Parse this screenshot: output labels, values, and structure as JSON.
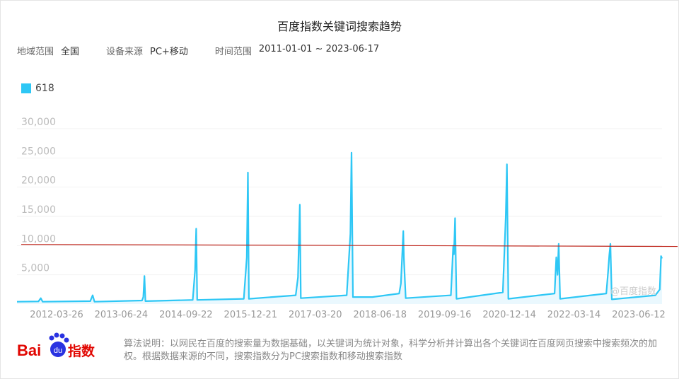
{
  "title": "百度指数关键词搜索趋势",
  "filters": {
    "region_label": "地域范围",
    "region": "全国",
    "device_label": "设备来源",
    "device": "PC+移动",
    "time_label": "时间范围",
    "time": "2011-01-01 ~ 2023-06-17"
  },
  "watermark": "@百度指数",
  "footer": "算法说明：以网民在百度的搜索量为数据基础，以关键词为统计对象，科学分析并计算出各个关键词在百度网页搜索中搜索频次的加权。根据数据来源的不同，搜索指数分为PC搜索指数和移动搜索指数",
  "logo_text": "Baidu指数",
  "chart_data": {
    "type": "line",
    "legend_position": "top-left",
    "grid": true,
    "xlim": [
      "2011-01-01",
      "2023-06-17"
    ],
    "ylim": [
      0,
      30000
    ],
    "yticks": [
      "5,000",
      "10,000",
      "15,000",
      "20,000",
      "25,000",
      "30,000"
    ],
    "ytick_values": [
      5000,
      10000,
      15000,
      20000,
      25000,
      30000
    ],
    "xticks": [
      "2012-03-26",
      "2013-06-24",
      "2014-09-22",
      "2015-12-21",
      "2017-03-20",
      "2018-06-18",
      "2019-09-16",
      "2020-12-14",
      "2022-03-14",
      "2023-06-12"
    ],
    "series": [
      {
        "name": "618",
        "color": "#2ec7f5",
        "points": [
          [
            "2011-01-01",
            400
          ],
          [
            "2011-06-01",
            450
          ],
          [
            "2011-06-18",
            1000
          ],
          [
            "2011-07-01",
            400
          ],
          [
            "2012-06-01",
            500
          ],
          [
            "2012-06-18",
            1500
          ],
          [
            "2012-07-01",
            400
          ],
          [
            "2013-06-01",
            600
          ],
          [
            "2013-06-10",
            1200
          ],
          [
            "2013-06-18",
            4800
          ],
          [
            "2013-06-25",
            500
          ],
          [
            "2014-05-25",
            700
          ],
          [
            "2014-06-10",
            5800
          ],
          [
            "2014-06-18",
            12900
          ],
          [
            "2014-06-25",
            700
          ],
          [
            "2015-05-20",
            900
          ],
          [
            "2015-06-10",
            8000
          ],
          [
            "2015-06-18",
            22500
          ],
          [
            "2015-06-25",
            900
          ],
          [
            "2016-05-20",
            1500
          ],
          [
            "2016-06-05",
            4600
          ],
          [
            "2016-06-18",
            17000
          ],
          [
            "2016-06-25",
            1000
          ],
          [
            "2017-05-15",
            1500
          ],
          [
            "2017-06-10",
            12000
          ],
          [
            "2017-06-18",
            25900
          ],
          [
            "2017-06-28",
            1200
          ],
          [
            "2017-11-11",
            1200
          ],
          [
            "2018-05-20",
            1800
          ],
          [
            "2018-06-01",
            3500
          ],
          [
            "2018-06-18",
            12500
          ],
          [
            "2018-06-22",
            8000
          ],
          [
            "2018-07-05",
            1000
          ],
          [
            "2019-05-20",
            1500
          ],
          [
            "2019-06-05",
            10000
          ],
          [
            "2019-06-10",
            8500
          ],
          [
            "2019-06-18",
            14700
          ],
          [
            "2019-06-28",
            900
          ],
          [
            "2020-05-20",
            2000
          ],
          [
            "2020-06-10",
            15000
          ],
          [
            "2020-06-18",
            23900
          ],
          [
            "2020-06-28",
            900
          ],
          [
            "2021-05-20",
            1800
          ],
          [
            "2021-06-01",
            8000
          ],
          [
            "2021-06-10",
            5000
          ],
          [
            "2021-06-18",
            10300
          ],
          [
            "2021-06-28",
            900
          ],
          [
            "2022-05-20",
            1800
          ],
          [
            "2022-06-01",
            5300
          ],
          [
            "2022-06-10",
            8300
          ],
          [
            "2022-06-18",
            10300
          ],
          [
            "2022-06-28",
            800
          ],
          [
            "2023-05-01",
            1500
          ],
          [
            "2023-06-01",
            2500
          ],
          [
            "2023-06-10",
            8200
          ],
          [
            "2023-06-17",
            7800
          ]
        ]
      }
    ],
    "trend_line": {
      "color": "#c0281e",
      "start": [
        "2011-01-01",
        10200
      ],
      "end": [
        "2023-06-17",
        9850
      ]
    }
  }
}
